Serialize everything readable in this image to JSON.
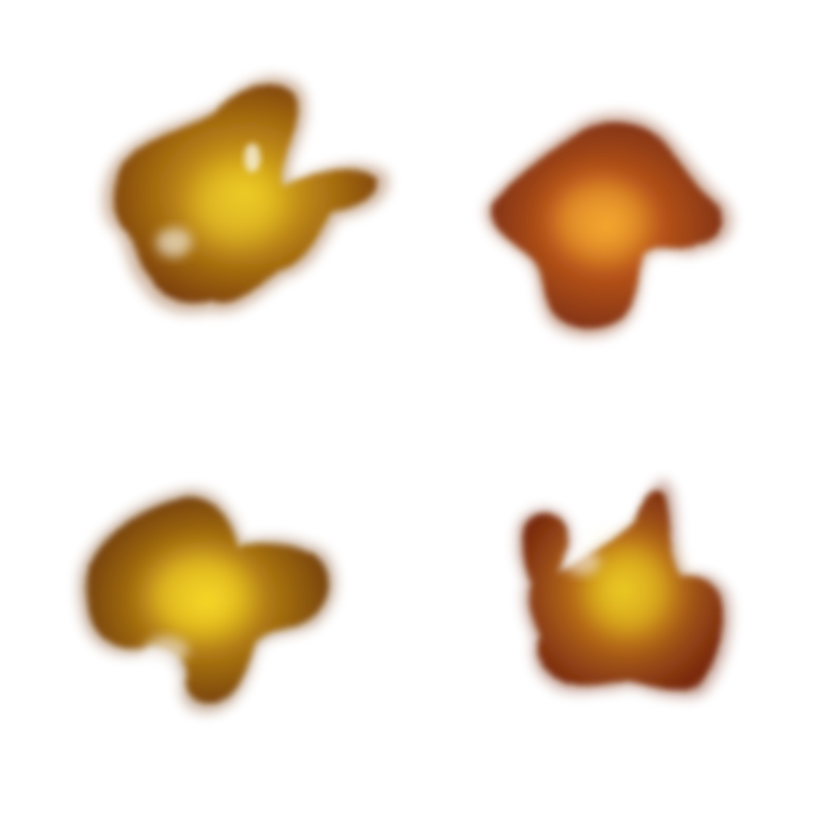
{
  "canvas": {
    "background": "#ffffff"
  },
  "splats": [
    {
      "name": "explosion-splat-top-left",
      "core_color": "#e8c21a",
      "mid_color": "#b98212",
      "edge_color": "#7a3e10"
    },
    {
      "name": "explosion-splat-top-right",
      "core_color": "#f0a22a",
      "mid_color": "#b5521a",
      "edge_color": "#7a2e12"
    },
    {
      "name": "explosion-splat-bottom-left",
      "core_color": "#f3d21e",
      "mid_color": "#b07a12",
      "edge_color": "#6e3a0e"
    },
    {
      "name": "explosion-splat-bottom-right",
      "core_color": "#e4c21c",
      "mid_color": "#b56a16",
      "edge_color": "#7a2a10"
    }
  ]
}
